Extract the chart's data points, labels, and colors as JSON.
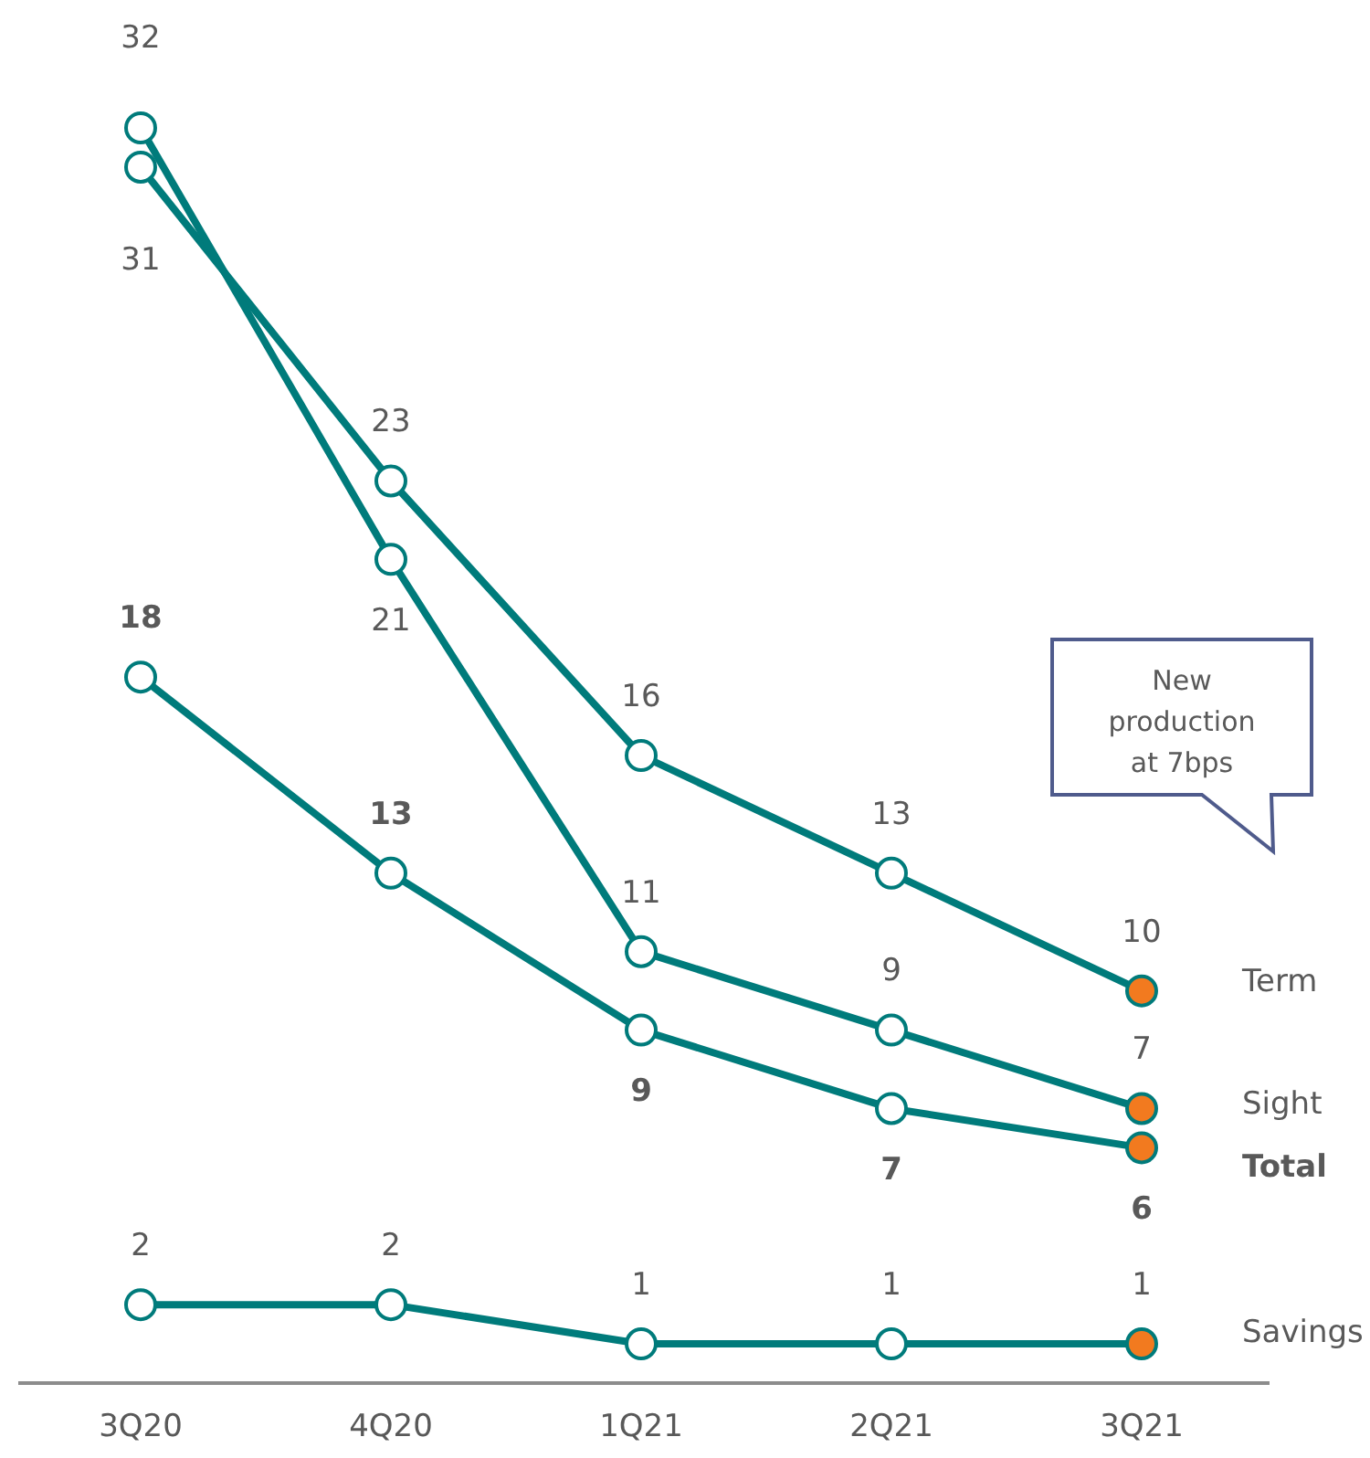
{
  "chart_data": {
    "type": "line",
    "categories": [
      "3Q20",
      "4Q20",
      "1Q21",
      "2Q21",
      "3Q21"
    ],
    "series": [
      {
        "name": "Term",
        "color": "#007b7b",
        "values": [
          31,
          23,
          16,
          13,
          10
        ],
        "colors": [
          "#ffffff",
          "#ffffff",
          "#ffffff",
          "#ffffff",
          "#f27a1f"
        ]
      },
      {
        "name": "Sight",
        "color": "#007b7b",
        "values": [
          32,
          21,
          11,
          9,
          7
        ],
        "colors": [
          "#ffffff",
          "#ffffff",
          "#ffffff",
          "#ffffff",
          "#f27a1f"
        ]
      },
      {
        "name": "Total",
        "color": "#007b7b",
        "values": [
          18,
          13,
          9,
          7,
          6
        ],
        "colors": [
          "#ffffff",
          "#ffffff",
          "#ffffff",
          "#ffffff",
          "#f27a1f"
        ]
      },
      {
        "name": "Savings",
        "color": "#007b7b",
        "values": [
          2,
          2,
          1,
          1,
          1
        ],
        "colors": [
          "#ffffff",
          "#ffffff",
          "#ffffff",
          "#ffffff",
          "#f27a1f"
        ]
      }
    ],
    "data_labels": true,
    "marker": "circle",
    "line_style": "solid",
    "annotations": [
      "New production at 7bps"
    ]
  }
}
